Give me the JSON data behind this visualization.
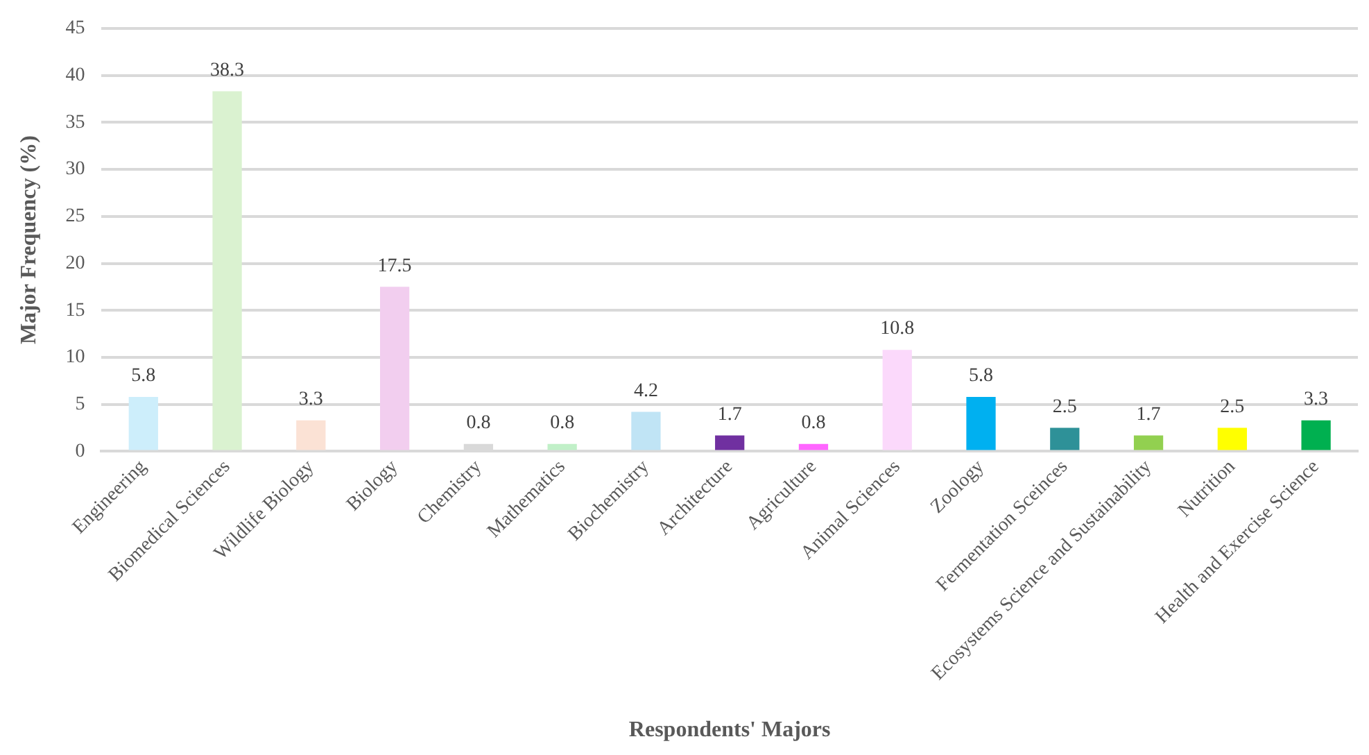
{
  "chart_data": {
    "type": "bar",
    "xlabel": "Respondents' Majors",
    "ylabel": "Major Frequency (%)",
    "categories": [
      "Engineering",
      "Biomedical Sciences",
      "Wildlife Biology",
      "Biology",
      "Chemistry",
      "Mathematics",
      "Biochemistry",
      "Architecture",
      "Agriculture",
      "Animal Sciences",
      "Zoology",
      "Fermentation Sceinces",
      "Ecosystems Science and Sustainability",
      "Nutrition",
      "Health and Exercise Science"
    ],
    "values": [
      5.8,
      38.3,
      3.3,
      17.5,
      0.8,
      0.8,
      4.2,
      1.7,
      0.8,
      10.8,
      5.8,
      2.5,
      1.7,
      2.5,
      3.3
    ],
    "colors": [
      "#cdeefb",
      "#daf2d0",
      "#fbe2d5",
      "#f2ceef",
      "#d9d9d9",
      "#c1f0c8",
      "#c0e4f5",
      "#7030a0",
      "#ff66ff",
      "#fbd9fb",
      "#00b0f0",
      "#2e9198",
      "#92d050",
      "#ffff00",
      "#00b050"
    ],
    "ylim": [
      0,
      45
    ],
    "yticks": [
      0,
      5,
      10,
      15,
      20,
      25,
      30,
      35,
      40,
      45
    ],
    "grid": "y",
    "data_labels": true,
    "legend": false
  }
}
